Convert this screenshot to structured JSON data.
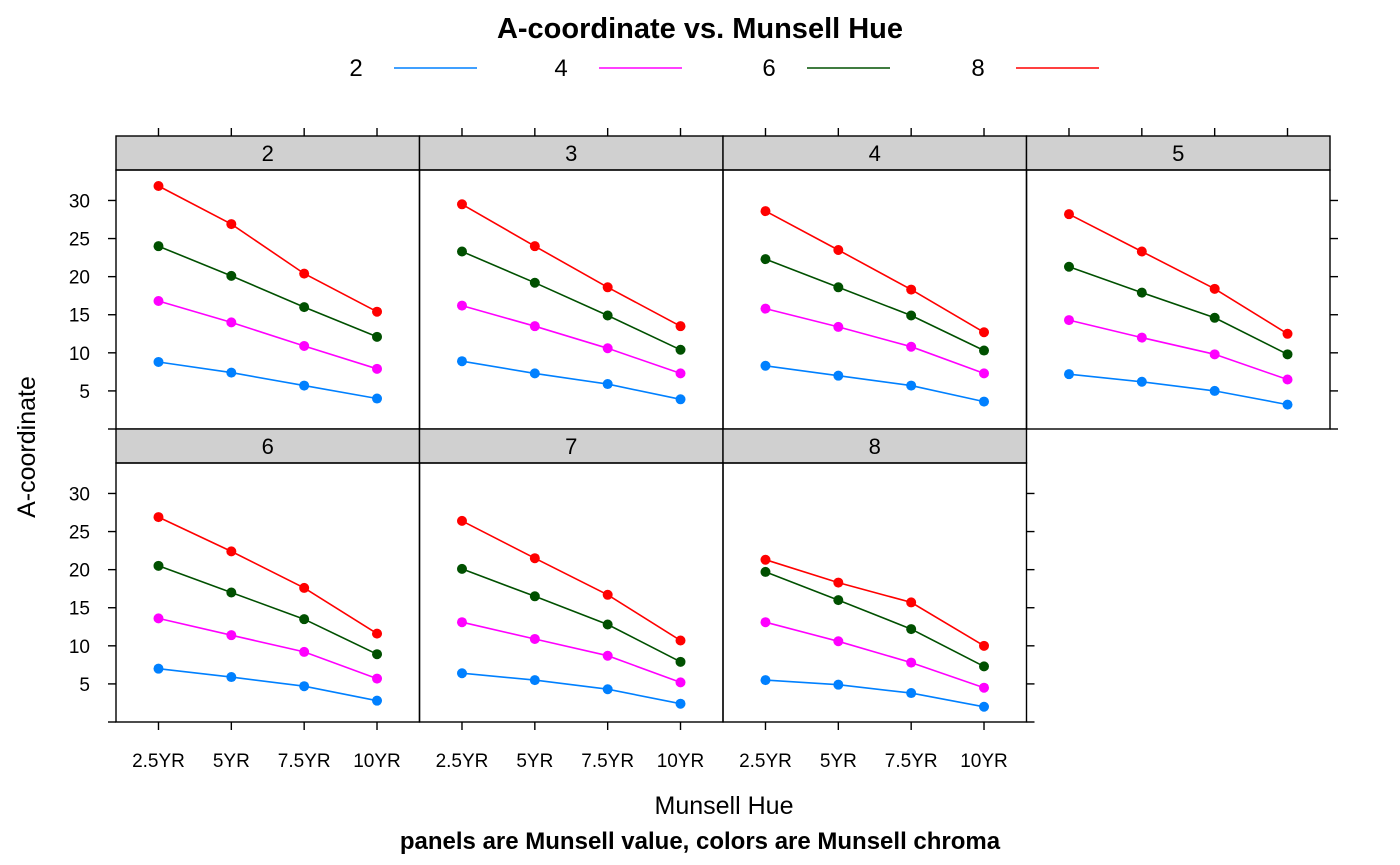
{
  "chart_data": {
    "type": "line",
    "title": "A-coordinate vs. Munsell Hue",
    "subtitle": "panels are Munsell value, colors are Munsell chroma",
    "xlabel": "Munsell Hue",
    "ylabel": "A-coordinate",
    "categories": [
      "2.5YR",
      "5YR",
      "7.5YR",
      "10YR"
    ],
    "ylim": [
      0,
      34
    ],
    "yticks": [
      5,
      10,
      15,
      20,
      25,
      30
    ],
    "legend": {
      "position": "top",
      "entries": [
        {
          "label": "2",
          "color": "#0080ff"
        },
        {
          "label": "4",
          "color": "#ff00ff"
        },
        {
          "label": "6",
          "color": "#005000"
        },
        {
          "label": "8",
          "color": "#ff0000"
        }
      ]
    },
    "panels": [
      {
        "label": "2",
        "series": [
          {
            "name": "2",
            "values": [
              8.8,
              7.4,
              5.7,
              4.0
            ]
          },
          {
            "name": "4",
            "values": [
              16.8,
              14.0,
              10.9,
              7.9
            ]
          },
          {
            "name": "6",
            "values": [
              24.0,
              20.1,
              16.0,
              12.1
            ]
          },
          {
            "name": "8",
            "values": [
              31.9,
              26.9,
              20.4,
              15.4
            ]
          }
        ]
      },
      {
        "label": "3",
        "series": [
          {
            "name": "2",
            "values": [
              8.9,
              7.3,
              5.9,
              3.9
            ]
          },
          {
            "name": "4",
            "values": [
              16.2,
              13.5,
              10.6,
              7.3
            ]
          },
          {
            "name": "6",
            "values": [
              23.3,
              19.2,
              14.9,
              10.4
            ]
          },
          {
            "name": "8",
            "values": [
              29.5,
              24.0,
              18.6,
              13.5
            ]
          }
        ]
      },
      {
        "label": "4",
        "series": [
          {
            "name": "2",
            "values": [
              8.3,
              7.0,
              5.7,
              3.6
            ]
          },
          {
            "name": "4",
            "values": [
              15.8,
              13.4,
              10.8,
              7.3
            ]
          },
          {
            "name": "6",
            "values": [
              22.3,
              18.6,
              14.9,
              10.3
            ]
          },
          {
            "name": "8",
            "values": [
              28.6,
              23.5,
              18.3,
              12.7
            ]
          }
        ]
      },
      {
        "label": "5",
        "series": [
          {
            "name": "2",
            "values": [
              7.2,
              6.2,
              5.0,
              3.2
            ]
          },
          {
            "name": "4",
            "values": [
              14.3,
              12.0,
              9.8,
              6.5
            ]
          },
          {
            "name": "6",
            "values": [
              21.3,
              17.9,
              14.6,
              9.8
            ]
          },
          {
            "name": "8",
            "values": [
              28.2,
              23.3,
              18.4,
              12.5
            ]
          }
        ]
      },
      {
        "label": "6",
        "series": [
          {
            "name": "2",
            "values": [
              7.0,
              5.9,
              4.7,
              2.8
            ]
          },
          {
            "name": "4",
            "values": [
              13.6,
              11.4,
              9.2,
              5.7
            ]
          },
          {
            "name": "6",
            "values": [
              20.5,
              17.0,
              13.5,
              8.9
            ]
          },
          {
            "name": "8",
            "values": [
              26.9,
              22.4,
              17.6,
              11.6
            ]
          }
        ]
      },
      {
        "label": "7",
        "series": [
          {
            "name": "2",
            "values": [
              6.4,
              5.5,
              4.3,
              2.4
            ]
          },
          {
            "name": "4",
            "values": [
              13.1,
              10.9,
              8.7,
              5.2
            ]
          },
          {
            "name": "6",
            "values": [
              20.1,
              16.5,
              12.8,
              7.9
            ]
          },
          {
            "name": "8",
            "values": [
              26.4,
              21.5,
              16.7,
              10.7
            ]
          }
        ]
      },
      {
        "label": "8",
        "series": [
          {
            "name": "2",
            "values": [
              5.5,
              4.9,
              3.8,
              2.0
            ]
          },
          {
            "name": "4",
            "values": [
              13.1,
              10.6,
              7.8,
              4.5
            ]
          },
          {
            "name": "6",
            "values": [
              19.7,
              16.0,
              12.2,
              7.3
            ]
          },
          {
            "name": "8",
            "values": [
              21.3,
              18.3,
              15.7,
              10.0
            ]
          }
        ]
      }
    ]
  }
}
